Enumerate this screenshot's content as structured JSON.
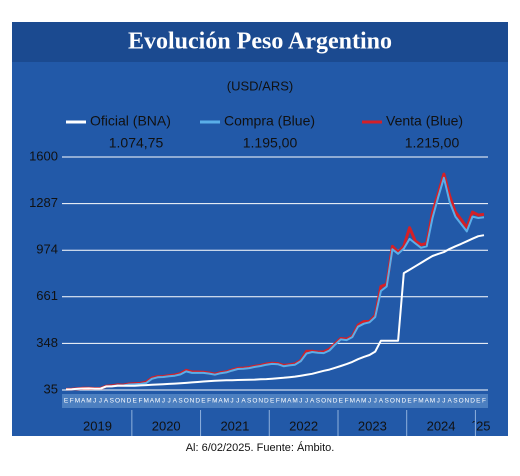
{
  "chart_data": {
    "type": "line",
    "title": "Evolución Peso Argentino",
    "subtitle": "(USD/ARS)",
    "categories": [
      "E",
      "F",
      "M",
      "A",
      "M",
      "J",
      "J",
      "A",
      "S",
      "O",
      "N",
      "D",
      "E",
      "F",
      "M",
      "A",
      "M",
      "J",
      "J",
      "A",
      "S",
      "O",
      "N",
      "D",
      "E",
      "F",
      "M",
      "A",
      "M",
      "J",
      "J",
      "A",
      "S",
      "O",
      "N",
      "D",
      "E",
      "F",
      "M",
      "A",
      "M",
      "J",
      "J",
      "A",
      "S",
      "O",
      "N",
      "D",
      "E",
      "F",
      "M",
      "A",
      "M",
      "J",
      "J",
      "A",
      "S",
      "O",
      "N",
      "D",
      "E",
      "F",
      "M",
      "A",
      "M",
      "J",
      "J",
      "A",
      "S",
      "O",
      "N",
      "D",
      "E",
      "F"
    ],
    "year_labels": [
      "2019",
      "2020",
      "2021",
      "2022",
      "2023",
      "2024",
      "´25"
    ],
    "series": [
      {
        "name": "Venta (Blue)",
        "color": "#d42027",
        "last_value_label": "1.215,00",
        "values": [
          39,
          40,
          44,
          47,
          47,
          45,
          45,
          60,
          63,
          69,
          68,
          75,
          78,
          79,
          88,
          115,
          125,
          126,
          132,
          136,
          145,
          167,
          156,
          156,
          154,
          149,
          142,
          152,
          157,
          169,
          180,
          182,
          186,
          195,
          201,
          210,
          215,
          213,
          200,
          205,
          210,
          234,
          295,
          295,
          290,
          290,
          310,
          346,
          381,
          377,
          395,
          470,
          495,
          495,
          535,
          730,
          745,
          1000,
          960,
          1000,
          1125,
          1035,
          1010,
          1020,
          1225,
          1355,
          1485,
          1340,
          1230,
          1180,
          1125,
          1230,
          1210,
          1215
        ]
      },
      {
        "name": "Compra (Blue)",
        "color": "#5aaee8",
        "last_value_label": "1.195,00",
        "values": [
          37,
          38,
          42,
          45,
          45,
          43,
          43,
          58,
          60,
          66,
          65,
          72,
          74,
          76,
          82,
          110,
          120,
          122,
          128,
          131,
          140,
          160,
          150,
          150,
          150,
          145,
          138,
          148,
          153,
          165,
          176,
          178,
          182,
          190,
          196,
          205,
          210,
          208,
          195,
          200,
          205,
          229,
          280,
          290,
          285,
          283,
          300,
          340,
          375,
          370,
          390,
          460,
          480,
          490,
          525,
          700,
          730,
          980,
          950,
          985,
          1050,
          1020,
          990,
          1000,
          1190,
          1330,
          1460,
          1300,
          1200,
          1150,
          1100,
          1200,
          1190,
          1195
        ]
      },
      {
        "name": "Oficial (BNA)",
        "color": "#ffffff",
        "last_value_label": "1.074,75",
        "values": [
          39,
          40,
          43,
          45,
          46,
          44,
          44,
          59,
          59,
          63,
          63,
          63,
          64,
          66,
          68,
          70,
          72,
          74,
          76,
          78,
          80,
          83,
          86,
          89,
          92,
          95,
          97,
          99,
          100,
          101,
          102,
          103,
          104,
          105,
          107,
          108,
          111,
          114,
          117,
          121,
          125,
          131,
          137,
          144,
          154,
          164,
          172,
          184,
          196,
          209,
          224,
          242,
          257,
          270,
          293,
          366,
          366,
          366,
          366,
          820,
          843,
          866,
          889,
          912,
          935,
          949,
          961,
          983,
          1000,
          1016,
          1034,
          1051,
          1068,
          1074.75
        ]
      }
    ],
    "ylim": [
      35,
      1600
    ],
    "yticks": [
      35,
      348,
      661,
      974,
      1287,
      1600
    ],
    "grid": true,
    "footnote": "Al: 6/02/2025. Fuente: Ámbito."
  }
}
